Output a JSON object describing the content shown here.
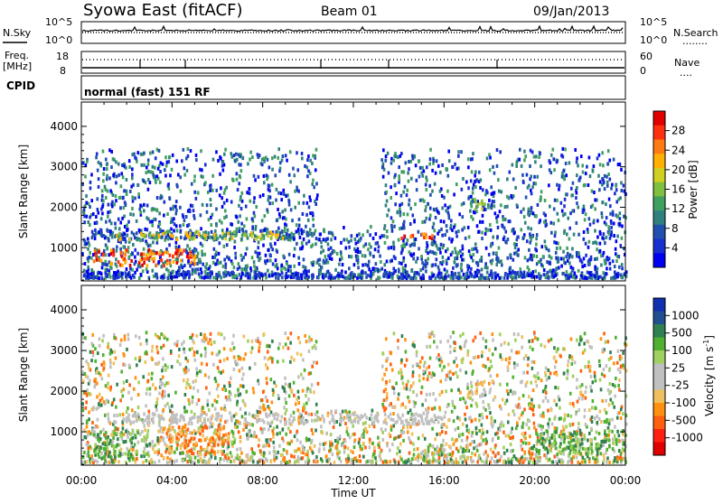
{
  "header": {
    "station": "Syowa East (fitACF)",
    "beam": "Beam 01",
    "date": "09/Jan/2013"
  },
  "panels": {
    "noise": {
      "left_label": "N.Sky",
      "left_ticks": [
        "10^5",
        "10^0"
      ],
      "right_ticks": [
        "10^5",
        "10^0"
      ],
      "right_label": "N.Search",
      "right_legend_line": "........"
    },
    "freq": {
      "left_label_line1": "Freq.",
      "left_label_line2": "[MHz]",
      "left_ticks": [
        "18",
        "8"
      ],
      "right_ticks": [
        "60",
        "0"
      ],
      "right_label": "Nave",
      "right_legend_line": "...."
    },
    "cpid": {
      "label": "CPID",
      "mode_text": "normal (fast) 151 RF"
    }
  },
  "power_colorbar": {
    "label": "Power [dB]",
    "ticks": [
      "28",
      "24",
      "20",
      "16",
      "12",
      "8",
      "4"
    ],
    "colors": [
      "#e00000",
      "#ff3010",
      "#ff7a10",
      "#ffb000",
      "#d0d020",
      "#80c040",
      "#40a060",
      "#308080",
      "#2050b0",
      "#1830d0",
      "#0000f0"
    ]
  },
  "velocity_colorbar": {
    "label": "Velocity [m s",
    "label_sup": "-1",
    "label_end": "]",
    "ticks": [
      "1000",
      "500",
      "100",
      "25",
      "-25",
      "-100",
      "-500",
      "-1000"
    ],
    "colors": [
      "#1030b0",
      "#205090",
      "#308050",
      "#50b030",
      "#a0d060",
      "#c0c0c0",
      "#c0c0c0",
      "#f0c060",
      "#ff9010",
      "#ff6010",
      "#ff2010",
      "#e00000"
    ]
  },
  "chart_data": [
    {
      "type": "heatmap",
      "title": "",
      "xlabel": "Time UT",
      "ylabel": "Slant Range [km]",
      "x_ticks": [
        "00:00",
        "04:00",
        "08:00",
        "12:00",
        "16:00",
        "20:00",
        "00:00"
      ],
      "y_ticks": [
        "1000",
        "2000",
        "3000",
        "4000"
      ],
      "xlim": [
        0,
        24
      ],
      "ylim": [
        180,
        4600
      ],
      "colorbar": "Power [dB]",
      "bands": [
        {
          "t": [
            0.2,
            11.0
          ],
          "r": [
            1150,
            1400
          ],
          "level": "blue-green"
        },
        {
          "t": [
            1.5,
            9.0
          ],
          "r": [
            1150,
            1350
          ],
          "level": "yellow-green"
        },
        {
          "t": [
            14.0,
            15.5
          ],
          "r": [
            1150,
            1300
          ],
          "level": "orange-red"
        },
        {
          "t": [
            17.0,
            17.8
          ],
          "r": [
            1900,
            2200
          ],
          "level": "green-yellow"
        },
        {
          "t": [
            0.5,
            5.0
          ],
          "r": [
            500,
            900
          ],
          "level": "orange-red"
        },
        {
          "t": [
            0.0,
            24.0
          ],
          "r": [
            200,
            350
          ],
          "level": "blue"
        }
      ]
    },
    {
      "type": "heatmap",
      "title": "",
      "xlabel": "Time UT",
      "ylabel": "Slant Range [km]",
      "x_ticks": [
        "00:00",
        "04:00",
        "08:00",
        "12:00",
        "16:00",
        "20:00",
        "00:00"
      ],
      "y_ticks": [
        "1000",
        "2000",
        "3000",
        "4000"
      ],
      "xlim": [
        0,
        24
      ],
      "ylim": [
        180,
        4600
      ],
      "colorbar": "Velocity [m s-1]",
      "bands": [
        {
          "t": [
            1.0,
            16.0
          ],
          "r": [
            1150,
            1400
          ],
          "level": "grey (|v|<25)"
        },
        {
          "t": [
            3.5,
            6.5
          ],
          "r": [
            400,
            1100
          ],
          "level": "orange (-100 to -500)"
        },
        {
          "t": [
            0.5,
            3.0
          ],
          "r": [
            300,
            1000
          ],
          "level": "green (100 to 500)"
        },
        {
          "t": [
            17.0,
            18.0
          ],
          "r": [
            1800,
            2200
          ],
          "level": "yellow (-25 to -100)"
        },
        {
          "t": [
            20.0,
            24.0
          ],
          "r": [
            400,
            1000
          ],
          "level": "green (25 to 500)"
        }
      ]
    }
  ]
}
